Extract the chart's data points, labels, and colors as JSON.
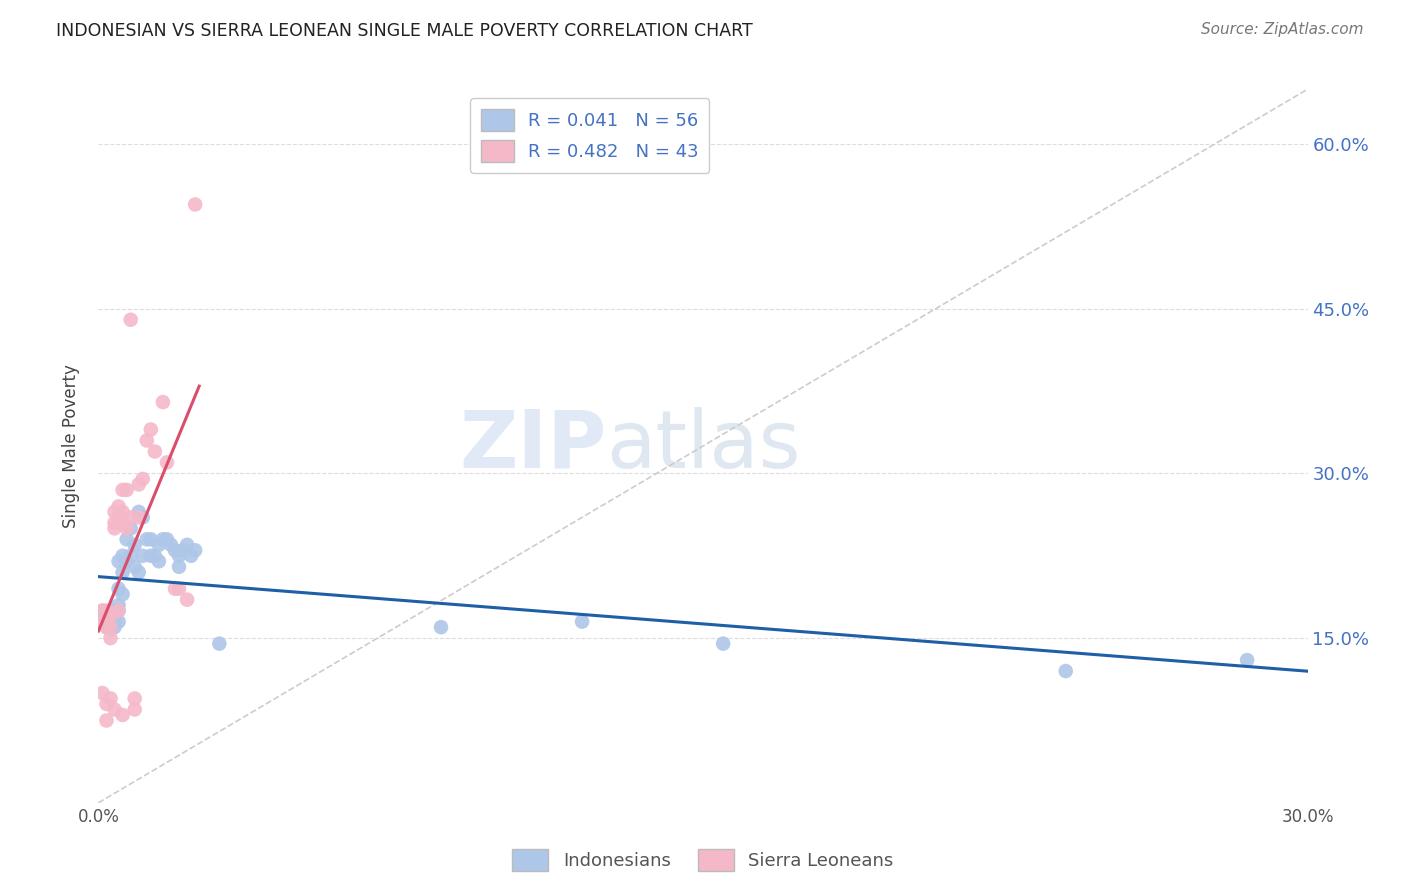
{
  "title": "INDONESIAN VS SIERRA LEONEAN SINGLE MALE POVERTY CORRELATION CHART",
  "source": "Source: ZipAtlas.com",
  "ylabel": "Single Male Poverty",
  "xlim": [
    0.0,
    0.3
  ],
  "ylim": [
    0.0,
    0.65
  ],
  "xticks": [
    0.0,
    0.05,
    0.1,
    0.15,
    0.2,
    0.25,
    0.3
  ],
  "xticklabels": [
    "0.0%",
    "",
    "",
    "",
    "",
    "",
    "30.0%"
  ],
  "yticks": [
    0.0,
    0.15,
    0.3,
    0.45,
    0.6
  ],
  "yticklabels": [
    "",
    "15.0%",
    "30.0%",
    "45.0%",
    "60.0%"
  ],
  "indonesian_R": "0.041",
  "indonesian_N": "56",
  "sierraleone_R": "0.482",
  "sierraleone_N": "43",
  "blue_color": "#aec6e8",
  "pink_color": "#f4b8c8",
  "blue_line_color": "#1f5fa6",
  "pink_line_color": "#d94f6b",
  "diagonal_color": "#cccccc",
  "watermark_zip": "ZIP",
  "watermark_atlas": "atlas",
  "indonesian_x": [
    0.001,
    0.001,
    0.001,
    0.002,
    0.002,
    0.002,
    0.002,
    0.003,
    0.003,
    0.003,
    0.003,
    0.003,
    0.004,
    0.004,
    0.004,
    0.004,
    0.005,
    0.005,
    0.005,
    0.005,
    0.005,
    0.006,
    0.006,
    0.006,
    0.007,
    0.007,
    0.008,
    0.008,
    0.009,
    0.009,
    0.01,
    0.01,
    0.011,
    0.011,
    0.012,
    0.013,
    0.013,
    0.014,
    0.015,
    0.015,
    0.016,
    0.017,
    0.018,
    0.019,
    0.02,
    0.02,
    0.021,
    0.022,
    0.023,
    0.024,
    0.03,
    0.085,
    0.12,
    0.155,
    0.24,
    0.285
  ],
  "indonesian_y": [
    0.175,
    0.17,
    0.165,
    0.17,
    0.168,
    0.172,
    0.16,
    0.175,
    0.17,
    0.168,
    0.162,
    0.158,
    0.175,
    0.17,
    0.165,
    0.16,
    0.22,
    0.195,
    0.18,
    0.175,
    0.165,
    0.225,
    0.21,
    0.19,
    0.24,
    0.22,
    0.25,
    0.225,
    0.235,
    0.215,
    0.265,
    0.21,
    0.26,
    0.225,
    0.24,
    0.24,
    0.225,
    0.225,
    0.235,
    0.22,
    0.24,
    0.24,
    0.235,
    0.23,
    0.225,
    0.215,
    0.23,
    0.235,
    0.225,
    0.23,
    0.145,
    0.16,
    0.165,
    0.145,
    0.12,
    0.13
  ],
  "sierraleone_x": [
    0.001,
    0.001,
    0.001,
    0.001,
    0.002,
    0.002,
    0.002,
    0.002,
    0.002,
    0.003,
    0.003,
    0.003,
    0.003,
    0.004,
    0.004,
    0.004,
    0.004,
    0.005,
    0.005,
    0.005,
    0.005,
    0.006,
    0.006,
    0.006,
    0.006,
    0.007,
    0.007,
    0.008,
    0.008,
    0.009,
    0.009,
    0.01,
    0.01,
    0.011,
    0.012,
    0.013,
    0.014,
    0.016,
    0.017,
    0.019,
    0.02,
    0.022,
    0.024
  ],
  "sierraleone_y": [
    0.175,
    0.17,
    0.165,
    0.1,
    0.175,
    0.17,
    0.16,
    0.09,
    0.075,
    0.17,
    0.16,
    0.15,
    0.095,
    0.265,
    0.255,
    0.25,
    0.085,
    0.27,
    0.26,
    0.255,
    0.175,
    0.285,
    0.265,
    0.255,
    0.08,
    0.285,
    0.25,
    0.44,
    0.26,
    0.095,
    0.085,
    0.29,
    0.26,
    0.295,
    0.33,
    0.34,
    0.32,
    0.365,
    0.31,
    0.195,
    0.195,
    0.185,
    0.545
  ]
}
